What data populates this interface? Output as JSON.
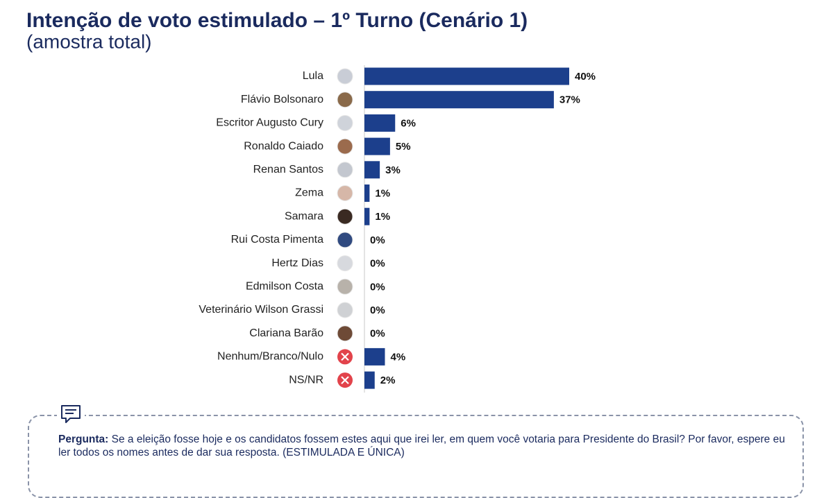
{
  "chart_data": {
    "type": "bar",
    "orientation": "horizontal",
    "title": "Intenção de voto estimulado – 1º Turno (Cenário 1)",
    "subtitle": "(amostra total)",
    "categories": [
      "Lula",
      "Flávio Bolsonaro",
      "Escritor Augusto Cury",
      "Ronaldo Caiado",
      "Renan Santos",
      "Zema",
      "Samara",
      "Rui Costa Pimenta",
      "Hertz Dias",
      "Edmilson Costa",
      "Veterinário Wilson Grassi",
      "Clariana Barão",
      "Nenhum/Branco/Nulo",
      "NS/NR"
    ],
    "values": [
      40,
      37,
      6,
      5,
      3,
      1,
      1,
      0,
      0,
      0,
      0,
      0,
      4,
      2
    ],
    "value_labels": [
      "40%",
      "37%",
      "6%",
      "5%",
      "3%",
      "1%",
      "1%",
      "0%",
      "0%",
      "0%",
      "0%",
      "0%",
      "4%",
      "2%"
    ],
    "color": "#1c3f8c"
  },
  "question": {
    "label": "Pergunta:",
    "text": "Se a eleição fosse hoje e os candidatos fossem estes aqui que irei ler, em quem você votaria para Presidente do Brasil? Por favor, espere eu ler todos os nomes antes de dar sua resposta. (ESTIMULADA E ÚNICA)"
  }
}
